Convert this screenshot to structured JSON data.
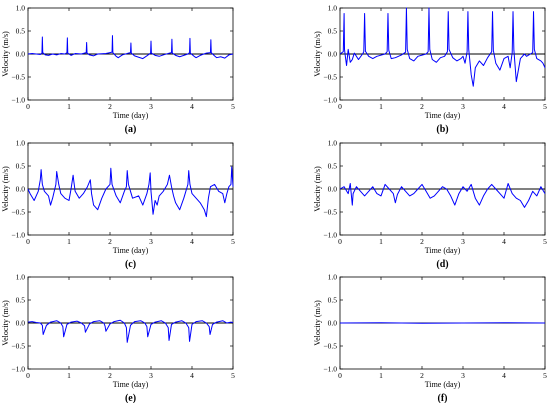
{
  "chart_data": [
    {
      "type": "line",
      "caption": "(a)",
      "xlabel": "Time (day)",
      "ylabel": "Velocity (m/s)",
      "xlim": [
        0,
        5
      ],
      "ylim": [
        -1.0,
        1.0
      ],
      "xticks": [
        0,
        1,
        2,
        3,
        4,
        5
      ],
      "yticks": [
        -1.0,
        -0.5,
        0.0,
        0.5,
        1.0
      ],
      "ytick_labels": [
        "−1.0",
        "−0.5",
        "0.0",
        "0.5",
        "1.0"
      ],
      "series_color": "#0000ff",
      "series": [
        {
          "x": [
            0.0,
            0.1,
            0.2,
            0.3,
            0.34,
            0.35,
            0.36,
            0.42,
            0.5,
            0.6,
            0.7,
            0.8,
            0.9,
            0.95,
            0.96,
            0.97,
            1.05,
            1.15,
            1.3,
            1.42,
            1.43,
            1.44,
            1.5,
            1.6,
            1.7,
            1.9,
            2.0,
            2.05,
            2.06,
            2.07,
            2.15,
            2.2,
            2.3,
            2.45,
            2.5,
            2.51,
            2.52,
            2.6,
            2.7,
            2.8,
            2.9,
            2.99,
            3.0,
            3.01,
            3.1,
            3.2,
            3.3,
            3.45,
            3.5,
            3.51,
            3.52,
            3.6,
            3.7,
            3.9,
            3.94,
            3.95,
            3.96,
            4.05,
            4.1,
            4.2,
            4.35,
            4.45,
            4.46,
            4.47,
            4.55,
            4.6,
            4.7,
            4.8,
            4.9,
            5.0
          ],
          "y": [
            0.0,
            0.01,
            0.0,
            -0.01,
            0.02,
            0.37,
            0.03,
            -0.02,
            -0.03,
            0.0,
            -0.02,
            0.01,
            0.0,
            0.03,
            0.35,
            0.02,
            -0.03,
            0.01,
            0.0,
            0.03,
            0.25,
            0.02,
            -0.02,
            -0.04,
            0.0,
            0.01,
            0.03,
            0.04,
            0.4,
            0.03,
            -0.05,
            -0.08,
            -0.02,
            0.02,
            0.03,
            0.24,
            0.02,
            -0.04,
            -0.07,
            -0.1,
            -0.04,
            0.02,
            0.28,
            0.02,
            -0.03,
            -0.05,
            -0.02,
            0.02,
            0.03,
            0.32,
            0.02,
            -0.03,
            -0.06,
            0.0,
            0.03,
            0.34,
            0.02,
            -0.05,
            -0.08,
            -0.03,
            0.02,
            0.03,
            0.31,
            0.03,
            -0.04,
            -0.08,
            -0.06,
            -0.09,
            -0.02,
            0.0
          ]
        }
      ]
    },
    {
      "type": "line",
      "caption": "(b)",
      "xlabel": "Time (day)",
      "ylabel": "Velocity (m/s)",
      "xlim": [
        0,
        5
      ],
      "ylim": [
        -1.0,
        1.0
      ],
      "xticks": [
        0,
        1,
        2,
        3,
        4,
        5
      ],
      "yticks": [
        -1.0,
        -0.5,
        0.0,
        0.5,
        1.0
      ],
      "ytick_labels": [
        "−1.0",
        "−0.5",
        "0.0",
        "0.5",
        "1.0"
      ],
      "series_color": "#0000ff",
      "series": [
        {
          "x": [
            0.0,
            0.08,
            0.1,
            0.11,
            0.13,
            0.16,
            0.2,
            0.25,
            0.3,
            0.35,
            0.45,
            0.55,
            0.58,
            0.6,
            0.62,
            0.7,
            0.8,
            0.9,
            1.1,
            1.15,
            1.17,
            1.19,
            1.25,
            1.35,
            1.5,
            1.6,
            1.62,
            1.64,
            1.7,
            1.8,
            1.9,
            2.1,
            2.15,
            2.17,
            2.19,
            2.25,
            2.35,
            2.45,
            2.55,
            2.62,
            2.64,
            2.66,
            2.75,
            2.85,
            2.95,
            3.0,
            3.05,
            3.1,
            3.12,
            3.14,
            3.2,
            3.25,
            3.3,
            3.4,
            3.5,
            3.6,
            3.7,
            3.72,
            3.74,
            3.8,
            3.9,
            4.0,
            4.1,
            4.15,
            4.2,
            4.22,
            4.24,
            4.3,
            4.4,
            4.5,
            4.55,
            4.7,
            4.72,
            4.74,
            4.8,
            4.9,
            4.95,
            5.0
          ],
          "y": [
            0.0,
            0.05,
            0.88,
            0.1,
            -0.05,
            -0.25,
            0.1,
            -0.18,
            -0.12,
            0.02,
            -0.12,
            0.0,
            0.05,
            0.88,
            0.06,
            -0.05,
            -0.1,
            -0.05,
            0.0,
            0.05,
            0.88,
            0.08,
            -0.1,
            -0.08,
            -0.02,
            0.04,
            1.0,
            0.1,
            -0.1,
            -0.15,
            -0.05,
            0.0,
            0.05,
            1.0,
            0.1,
            -0.12,
            -0.18,
            -0.08,
            -0.05,
            0.05,
            0.92,
            0.1,
            -0.08,
            -0.15,
            -0.1,
            -0.05,
            -0.2,
            0.05,
            0.92,
            0.1,
            -0.45,
            -0.7,
            -0.3,
            -0.15,
            -0.25,
            -0.08,
            0.05,
            0.92,
            0.08,
            -0.2,
            -0.35,
            -0.1,
            -0.05,
            -0.3,
            0.03,
            0.92,
            0.1,
            -0.6,
            -0.1,
            0.0,
            -0.05,
            0.03,
            0.92,
            0.1,
            -0.1,
            -0.15,
            -0.2,
            -0.3
          ]
        }
      ]
    },
    {
      "type": "line",
      "caption": "(c)",
      "xlabel": "Time (day)",
      "ylabel": "Velocity (m/s)",
      "xlim": [
        0,
        5
      ],
      "ylim": [
        -1.0,
        1.0
      ],
      "xticks": [
        0,
        1,
        2,
        3,
        4,
        5
      ],
      "yticks": [
        -1.0,
        -0.5,
        0.0,
        0.5,
        1.0
      ],
      "ytick_labels": [
        "−1.0",
        "−0.5",
        "0.0",
        "0.5",
        "1.0"
      ],
      "series_color": "#0000ff",
      "series": [
        {
          "x": [
            0.0,
            0.05,
            0.15,
            0.25,
            0.3,
            0.32,
            0.35,
            0.4,
            0.5,
            0.55,
            0.6,
            0.68,
            0.7,
            0.75,
            0.8,
            0.9,
            1.0,
            1.05,
            1.1,
            1.12,
            1.15,
            1.25,
            1.35,
            1.45,
            1.52,
            1.55,
            1.6,
            1.7,
            1.8,
            1.9,
            2.0,
            2.02,
            2.05,
            2.15,
            2.25,
            2.35,
            2.4,
            2.42,
            2.45,
            2.55,
            2.7,
            2.8,
            2.9,
            2.95,
            2.98,
            3.0,
            3.05,
            3.1,
            3.15,
            3.2,
            3.3,
            3.4,
            3.45,
            3.5,
            3.55,
            3.6,
            3.7,
            3.8,
            3.85,
            3.9,
            3.92,
            3.95,
            4.0,
            4.1,
            4.2,
            4.3,
            4.35,
            4.4,
            4.45,
            4.55,
            4.65,
            4.75,
            4.8,
            4.85,
            4.9,
            4.95,
            4.97,
            5.0
          ],
          "y": [
            0.0,
            -0.1,
            -0.25,
            -0.05,
            0.2,
            0.42,
            0.1,
            -0.05,
            -0.15,
            -0.35,
            -0.2,
            0.1,
            0.38,
            0.1,
            -0.1,
            -0.2,
            -0.25,
            0.0,
            0.3,
            0.15,
            -0.05,
            -0.2,
            -0.1,
            0.05,
            0.2,
            -0.1,
            -0.35,
            -0.45,
            -0.2,
            0.0,
            0.1,
            0.45,
            0.1,
            -0.15,
            -0.3,
            -0.05,
            0.05,
            0.4,
            0.1,
            -0.2,
            -0.15,
            -0.35,
            -0.1,
            0.1,
            0.35,
            -0.05,
            -0.55,
            -0.25,
            -0.35,
            -0.15,
            -0.05,
            0.1,
            0.3,
            0.05,
            -0.15,
            -0.3,
            -0.45,
            -0.2,
            -0.05,
            0.1,
            0.4,
            0.1,
            -0.1,
            -0.2,
            -0.3,
            -0.45,
            -0.6,
            -0.2,
            0.05,
            0.1,
            -0.05,
            -0.1,
            -0.3,
            -0.1,
            0.05,
            0.1,
            0.48,
            0.05
          ]
        }
      ]
    },
    {
      "type": "line",
      "caption": "(d)",
      "xlabel": "Time (day)",
      "ylabel": "Velocity (m/s)",
      "xlim": [
        0,
        5
      ],
      "ylim": [
        -1.0,
        1.0
      ],
      "xticks": [
        0,
        1,
        2,
        3,
        4,
        5
      ],
      "yticks": [
        -1.0,
        -0.5,
        0.0,
        0.5,
        1.0
      ],
      "ytick_labels": [
        "−1.0",
        "−0.5",
        "0.0",
        "0.5",
        "1.0"
      ],
      "series_color": "#0000ff",
      "series": [
        {
          "x": [
            0.0,
            0.1,
            0.2,
            0.25,
            0.3,
            0.32,
            0.4,
            0.5,
            0.6,
            0.7,
            0.8,
            0.9,
            1.0,
            1.1,
            1.2,
            1.3,
            1.35,
            1.4,
            1.5,
            1.6,
            1.7,
            1.8,
            1.9,
            2.0,
            2.1,
            2.2,
            2.3,
            2.4,
            2.5,
            2.6,
            2.7,
            2.8,
            2.9,
            3.0,
            3.1,
            3.2,
            3.3,
            3.4,
            3.5,
            3.6,
            3.7,
            3.8,
            3.9,
            4.0,
            4.1,
            4.2,
            4.3,
            4.4,
            4.5,
            4.6,
            4.7,
            4.8,
            4.9,
            5.0
          ],
          "y": [
            0.0,
            0.05,
            -0.1,
            0.12,
            -0.35,
            -0.1,
            0.05,
            -0.05,
            -0.15,
            -0.05,
            0.05,
            -0.1,
            -0.15,
            0.1,
            0.0,
            -0.1,
            -0.3,
            -0.12,
            0.05,
            -0.05,
            -0.15,
            -0.1,
            0.0,
            0.1,
            -0.05,
            -0.2,
            -0.15,
            -0.05,
            0.05,
            0.0,
            -0.15,
            -0.35,
            -0.1,
            0.05,
            -0.05,
            0.1,
            -0.2,
            -0.35,
            -0.15,
            0.0,
            0.1,
            0.0,
            -0.1,
            -0.2,
            0.12,
            -0.1,
            -0.2,
            -0.25,
            -0.4,
            -0.25,
            -0.05,
            -0.15,
            0.05,
            -0.1
          ]
        }
      ]
    },
    {
      "type": "line",
      "caption": "(e)",
      "xlabel": "Time (day)",
      "ylabel": "Velocity (m/s)",
      "xlim": [
        0,
        5
      ],
      "ylim": [
        -1.0,
        1.0
      ],
      "xticks": [
        0,
        1,
        2,
        3,
        4,
        5
      ],
      "yticks": [
        -1.0,
        -0.5,
        0.0,
        0.5,
        1.0
      ],
      "ytick_labels": [
        "−1.0",
        "−0.5",
        "0.0",
        "0.5",
        "1.0"
      ],
      "series_color": "#0000ff",
      "series": [
        {
          "x": [
            0.0,
            0.1,
            0.2,
            0.3,
            0.35,
            0.37,
            0.45,
            0.55,
            0.7,
            0.8,
            0.85,
            0.87,
            0.95,
            1.05,
            1.2,
            1.3,
            1.38,
            1.4,
            1.5,
            1.6,
            1.75,
            1.85,
            1.88,
            1.9,
            2.0,
            2.1,
            2.25,
            2.35,
            2.4,
            2.42,
            2.5,
            2.6,
            2.75,
            2.85,
            2.9,
            2.92,
            3.0,
            3.1,
            3.25,
            3.35,
            3.42,
            3.44,
            3.5,
            3.6,
            3.75,
            3.85,
            3.92,
            3.94,
            4.0,
            4.1,
            4.25,
            4.35,
            4.42,
            4.44,
            4.5,
            4.6,
            4.75,
            4.85,
            4.95,
            5.0
          ],
          "y": [
            0.02,
            0.03,
            0.01,
            0.0,
            -0.05,
            -0.25,
            -0.05,
            0.02,
            0.05,
            0.0,
            -0.08,
            -0.3,
            -0.03,
            0.02,
            0.04,
            0.0,
            -0.06,
            -0.2,
            -0.02,
            0.03,
            0.05,
            0.0,
            -0.07,
            -0.18,
            -0.02,
            0.03,
            0.06,
            0.0,
            -0.1,
            -0.42,
            -0.05,
            0.03,
            0.05,
            0.0,
            -0.08,
            -0.3,
            -0.03,
            0.02,
            0.05,
            0.0,
            -0.1,
            -0.38,
            -0.03,
            0.02,
            0.05,
            0.0,
            -0.1,
            -0.4,
            -0.03,
            0.03,
            0.05,
            0.0,
            -0.08,
            -0.25,
            -0.03,
            0.02,
            0.05,
            0.0,
            0.02,
            0.01
          ]
        }
      ]
    },
    {
      "type": "line",
      "caption": "(f)",
      "xlabel": "Time (day)",
      "ylabel": "Velocity (m/s)",
      "xlim": [
        0,
        5
      ],
      "ylim": [
        -1.0,
        1.0
      ],
      "xticks": [
        0,
        1,
        2,
        3,
        4,
        5
      ],
      "yticks": [
        -1.0,
        -0.5,
        0.0,
        0.5,
        1.0
      ],
      "ytick_labels": [
        "−1.0",
        "−0.5",
        "0.0",
        "0.5",
        "1.0"
      ],
      "series_color": "#0000ff",
      "series": [
        {
          "x": [
            0.0,
            1.0,
            2.0,
            3.0,
            4.0,
            5.0
          ],
          "y": [
            0.0,
            0.005,
            -0.005,
            0.0,
            0.005,
            0.0
          ]
        }
      ]
    }
  ]
}
